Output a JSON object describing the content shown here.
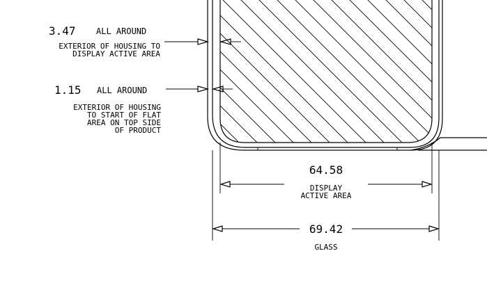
{
  "annotations": {
    "dim1": {
      "value": "3.47",
      "suffix": "ALL AROUND",
      "desc": [
        "EXTERIOR OF HOUSING TO",
        "DISPLAY ACTIVE AREA"
      ]
    },
    "dim2": {
      "value": "1.15",
      "suffix": "ALL AROUND",
      "desc": [
        "EXTERIOR OF HOUSING",
        "TO START OF FLAT",
        "AREA ON TOP SIDE",
        "OF PRODUCT"
      ]
    }
  },
  "dimensions": {
    "display": {
      "value": "64.58",
      "label": [
        "DISPLAY",
        "ACTIVE AREA"
      ]
    },
    "glass": {
      "value": "69.42",
      "label": "GLASS"
    }
  }
}
